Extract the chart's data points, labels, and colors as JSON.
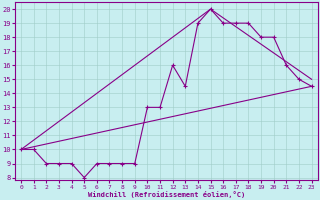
{
  "xlabel": "Windchill (Refroidissement éolien,°C)",
  "bg_color": "#c8eef0",
  "line_color": "#880088",
  "xlim": [
    -0.5,
    23.5
  ],
  "ylim": [
    7.8,
    20.5
  ],
  "xticks": [
    0,
    1,
    2,
    3,
    4,
    5,
    6,
    7,
    8,
    9,
    10,
    11,
    12,
    13,
    14,
    15,
    16,
    17,
    18,
    19,
    20,
    21,
    22,
    23
  ],
  "yticks": [
    8,
    9,
    10,
    11,
    12,
    13,
    14,
    15,
    16,
    17,
    18,
    19,
    20
  ],
  "line1_x": [
    0,
    1,
    2,
    3,
    4,
    5,
    6,
    7,
    8,
    9,
    10,
    11,
    12,
    13,
    14,
    15,
    16,
    17,
    18,
    19,
    20,
    21,
    22,
    23
  ],
  "line1_y": [
    10,
    10,
    9,
    9,
    9,
    8,
    9,
    9,
    9,
    9,
    13,
    13,
    16,
    14.5,
    19,
    20,
    19,
    19,
    19,
    18,
    18,
    16,
    15,
    14.5
  ],
  "line2_x": [
    0,
    23
  ],
  "line2_y": [
    10,
    14.5
  ],
  "line3_x": [
    0,
    15,
    23
  ],
  "line3_y": [
    10,
    20,
    15
  ]
}
